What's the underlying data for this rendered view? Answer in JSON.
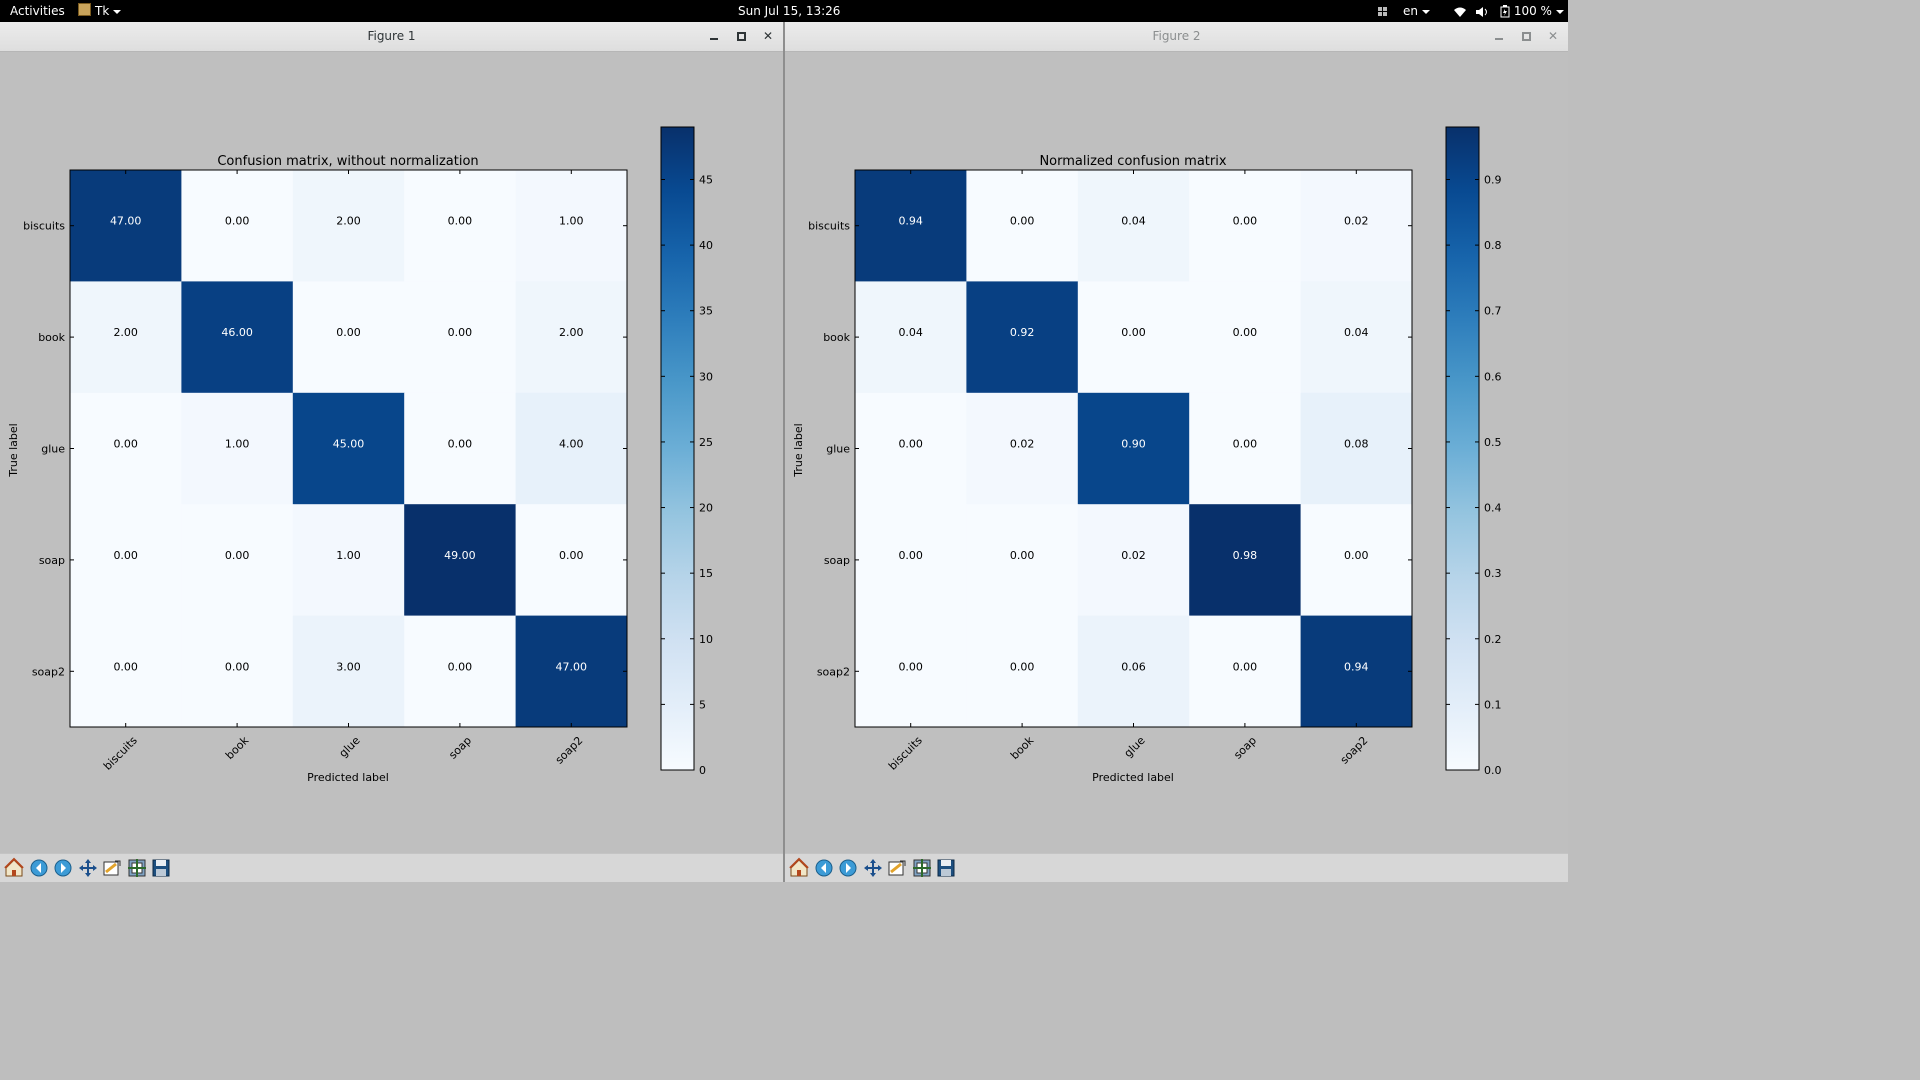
{
  "topbar": {
    "activities": "Activities",
    "app": "Tk",
    "clock": "Sun Jul 15, 13:26",
    "lang": "en",
    "battery": "100 %"
  },
  "windows": [
    {
      "title": "Figure 1",
      "chart_data": {
        "type": "heatmap",
        "title": "Confusion matrix, without normalization",
        "xlabel": "Predicted label",
        "ylabel": "True label",
        "x_categories": [
          "biscuits",
          "book",
          "glue",
          "soap",
          "soap2"
        ],
        "y_categories": [
          "biscuits",
          "book",
          "glue",
          "soap",
          "soap2"
        ],
        "values": [
          [
            47,
            0,
            2,
            0,
            1
          ],
          [
            2,
            46,
            0,
            0,
            2
          ],
          [
            0,
            1,
            45,
            0,
            4
          ],
          [
            0,
            0,
            1,
            49,
            0
          ],
          [
            0,
            0,
            3,
            0,
            47
          ]
        ],
        "cell_labels": [
          [
            "47.00",
            "0.00",
            "2.00",
            "0.00",
            "1.00"
          ],
          [
            "2.00",
            "46.00",
            "0.00",
            "0.00",
            "2.00"
          ],
          [
            "0.00",
            "1.00",
            "45.00",
            "0.00",
            "4.00"
          ],
          [
            "0.00",
            "0.00",
            "1.00",
            "49.00",
            "0.00"
          ],
          [
            "0.00",
            "0.00",
            "3.00",
            "0.00",
            "47.00"
          ]
        ],
        "vmin": 0,
        "vmax": 49,
        "colormap": "Blues",
        "colorbar_ticks": [
          0,
          5,
          10,
          15,
          20,
          25,
          30,
          35,
          40,
          45
        ],
        "colorbar_tick_labels": [
          "0",
          "5",
          "10",
          "15",
          "20",
          "25",
          "30",
          "35",
          "40",
          "45"
        ]
      }
    },
    {
      "title": "Figure 2",
      "chart_data": {
        "type": "heatmap",
        "title": "Normalized confusion matrix",
        "xlabel": "Predicted label",
        "ylabel": "True label",
        "x_categories": [
          "biscuits",
          "book",
          "glue",
          "soap",
          "soap2"
        ],
        "y_categories": [
          "biscuits",
          "book",
          "glue",
          "soap",
          "soap2"
        ],
        "values": [
          [
            0.94,
            0.0,
            0.04,
            0.0,
            0.02
          ],
          [
            0.04,
            0.92,
            0.0,
            0.0,
            0.04
          ],
          [
            0.0,
            0.02,
            0.9,
            0.0,
            0.08
          ],
          [
            0.0,
            0.0,
            0.02,
            0.98,
            0.0
          ],
          [
            0.0,
            0.0,
            0.06,
            0.0,
            0.94
          ]
        ],
        "cell_labels": [
          [
            "0.94",
            "0.00",
            "0.04",
            "0.00",
            "0.02"
          ],
          [
            "0.04",
            "0.92",
            "0.00",
            "0.00",
            "0.04"
          ],
          [
            "0.00",
            "0.02",
            "0.90",
            "0.00",
            "0.08"
          ],
          [
            "0.00",
            "0.00",
            "0.02",
            "0.98",
            "0.00"
          ],
          [
            "0.00",
            "0.00",
            "0.06",
            "0.00",
            "0.94"
          ]
        ],
        "vmin": 0,
        "vmax": 0.98,
        "colormap": "Blues",
        "colorbar_ticks": [
          0,
          0.1,
          0.2,
          0.3,
          0.4,
          0.5,
          0.6,
          0.7,
          0.8,
          0.9
        ],
        "colorbar_tick_labels": [
          "0.0",
          "0.1",
          "0.2",
          "0.3",
          "0.4",
          "0.5",
          "0.6",
          "0.7",
          "0.8",
          "0.9"
        ]
      }
    }
  ],
  "toolbar_icons": [
    "home-icon",
    "back-icon",
    "forward-icon",
    "pan-icon",
    "zoom-icon",
    "configure-subplots-icon",
    "save-icon"
  ]
}
